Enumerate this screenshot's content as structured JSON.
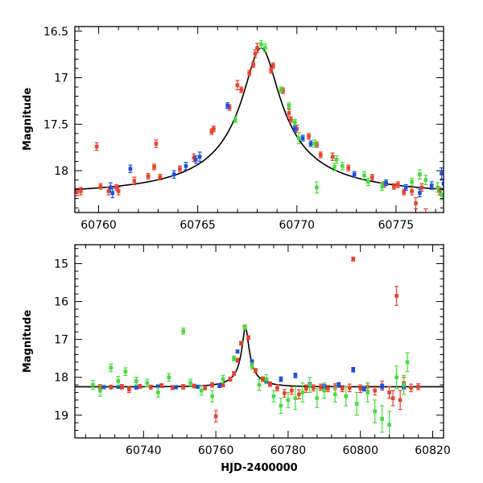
{
  "colors": {
    "red": "#e8412c",
    "blue": "#1b4fe0",
    "green": "#44dd3a",
    "model": "#000000"
  },
  "chart_data": [
    {
      "type": "scatter",
      "panel": "top",
      "xlabel": "",
      "ylabel": "Magnitude",
      "xlim": [
        60758.8,
        60777.4
      ],
      "ylim": [
        18.45,
        16.45
      ],
      "y_inverted": true,
      "x_ticks": [
        60760,
        60765,
        60770,
        60775
      ],
      "x_tick_labels": [
        "60760",
        "60765",
        "60770",
        "60775"
      ],
      "y_ticks": [
        16.5,
        17,
        17.5,
        18
      ],
      "y_tick_labels": [
        "16.5",
        "17",
        "17.5",
        "18"
      ],
      "model": {
        "name": "",
        "base": 18.25,
        "t0": 60768.2,
        "peak": 16.68,
        "u0": 0.115,
        "tE": 8.0
      },
      "series": [
        {
          "color_key": "red",
          "points": [
            [
              60758.9,
              18.23,
              0.04
            ],
            [
              60759.1,
              18.22,
              0.04
            ],
            [
              60759.9,
              17.74,
              0.04
            ],
            [
              60760.1,
              18.17,
              0.03
            ],
            [
              60760.5,
              18.22,
              0.04
            ],
            [
              60760.9,
              18.18,
              0.03
            ],
            [
              60761.0,
              18.22,
              0.04
            ],
            [
              60761.8,
              18.11,
              0.04
            ],
            [
              60762.5,
              18.06,
              0.03
            ],
            [
              60762.8,
              17.96,
              0.03
            ],
            [
              60762.9,
              17.71,
              0.04
            ],
            [
              60763.1,
              18.07,
              0.03
            ],
            [
              60764.1,
              17.98,
              0.03
            ],
            [
              60764.8,
              17.86,
              0.04
            ],
            [
              60765.7,
              17.58,
              0.03
            ],
            [
              60765.8,
              17.55,
              0.03
            ],
            [
              60766.6,
              17.32,
              0.03
            ],
            [
              60767.0,
              17.08,
              0.05
            ],
            [
              60767.2,
              17.13,
              0.03
            ],
            [
              60767.6,
              16.95,
              0.03
            ],
            [
              60767.8,
              16.86,
              0.03
            ],
            [
              60767.9,
              16.74,
              0.04
            ],
            [
              60768.0,
              16.68,
              0.05
            ],
            [
              60768.7,
              16.92,
              0.03
            ],
            [
              60768.8,
              16.87,
              0.03
            ],
            [
              60769.3,
              17.14,
              0.03
            ],
            [
              60769.6,
              17.38,
              0.04
            ],
            [
              60769.7,
              17.45,
              0.03
            ],
            [
              60770.0,
              17.55,
              0.04
            ],
            [
              60770.6,
              17.63,
              0.03
            ],
            [
              60771.0,
              17.72,
              0.03
            ],
            [
              60771.2,
              17.83,
              0.03
            ],
            [
              60771.8,
              17.85,
              0.04
            ],
            [
              60772.6,
              17.97,
              0.03
            ],
            [
              60773.8,
              18.07,
              0.03
            ],
            [
              60774.4,
              18.15,
              0.03
            ],
            [
              60774.9,
              18.17,
              0.03
            ],
            [
              60775.1,
              18.15,
              0.03
            ],
            [
              60775.4,
              18.23,
              0.03
            ],
            [
              60775.8,
              18.22,
              0.04
            ],
            [
              60776.0,
              18.35,
              0.06
            ],
            [
              60776.3,
              18.18,
              0.04
            ],
            [
              60776.5,
              18.47,
              0.06
            ],
            [
              60777.2,
              18.22,
              0.04
            ]
          ]
        },
        {
          "color_key": "blue",
          "points": [
            [
              60760.6,
              18.18,
              0.05
            ],
            [
              60760.7,
              18.24,
              0.05
            ],
            [
              60761.6,
              17.98,
              0.04
            ],
            [
              60763.8,
              18.04,
              0.04
            ],
            [
              60764.4,
              17.95,
              0.04
            ],
            [
              60764.9,
              17.88,
              0.04
            ],
            [
              60765.1,
              17.85,
              0.05
            ],
            [
              60766.5,
              17.3,
              0.03
            ],
            [
              60769.9,
              17.55,
              0.03
            ],
            [
              60770.3,
              17.65,
              0.03
            ],
            [
              60770.7,
              17.71,
              0.03
            ],
            [
              60772.9,
              18.04,
              0.03
            ],
            [
              60774.5,
              18.13,
              0.03
            ],
            [
              60775.5,
              18.18,
              0.03
            ],
            [
              60776.2,
              18.24,
              0.04
            ],
            [
              60776.8,
              18.16,
              0.04
            ],
            [
              60777.3,
              18.03,
              0.06
            ],
            [
              60777.4,
              18.14,
              0.05
            ]
          ]
        },
        {
          "color_key": "green",
          "points": [
            [
              60766.9,
              17.45,
              0.03
            ],
            [
              60768.2,
              16.64,
              0.04
            ],
            [
              60768.4,
              16.68,
              0.04
            ],
            [
              60769.2,
              17.13,
              0.03
            ],
            [
              60769.6,
              17.3,
              0.03
            ],
            [
              60769.9,
              17.48,
              0.03
            ],
            [
              60770.1,
              17.65,
              0.06
            ],
            [
              60770.9,
              17.71,
              0.04
            ],
            [
              60771.0,
              18.18,
              0.06
            ],
            [
              60771.9,
              17.96,
              0.04
            ],
            [
              60772.0,
              17.88,
              0.04
            ],
            [
              60772.3,
              17.95,
              0.04
            ],
            [
              60773.4,
              18.05,
              0.04
            ],
            [
              60773.6,
              18.12,
              0.04
            ],
            [
              60774.3,
              18.17,
              0.04
            ],
            [
              60775.8,
              18.12,
              0.04
            ],
            [
              60776.2,
              18.04,
              0.05
            ],
            [
              60776.5,
              18.1,
              0.05
            ],
            [
              60777.1,
              18.18,
              0.05
            ],
            [
              60777.3,
              18.26,
              0.05
            ]
          ]
        }
      ]
    },
    {
      "type": "scatter",
      "panel": "bottom",
      "xlabel": "HJD-2400000",
      "ylabel": "Magnitude",
      "xlim": [
        60721,
        60823
      ],
      "ylim": [
        19.6,
        14.5
      ],
      "y_inverted": true,
      "x_ticks": [
        60740,
        60760,
        60780,
        60800,
        60820
      ],
      "x_tick_labels": [
        "60740",
        "60760",
        "60780",
        "60800",
        "60820"
      ],
      "y_ticks": [
        15,
        16,
        17,
        18,
        19
      ],
      "y_tick_labels": [
        "15",
        "16",
        "17",
        "18",
        "19"
      ],
      "model": {
        "name": "",
        "base": 18.25,
        "t0": 60768.2,
        "peak": 16.68,
        "u0": 0.115,
        "tE": 8.0
      },
      "series": [
        {
          "color_key": "red",
          "points": [
            [
              60728,
              18.24,
              0.05
            ],
            [
              60731,
              18.26,
              0.05
            ],
            [
              60734,
              18.25,
              0.06
            ],
            [
              60736,
              18.32,
              0.08
            ],
            [
              60739,
              18.24,
              0.05
            ],
            [
              60742,
              18.26,
              0.05
            ],
            [
              60745,
              18.22,
              0.05
            ],
            [
              60748,
              18.27,
              0.05
            ],
            [
              60751,
              18.25,
              0.06
            ],
            [
              60754,
              18.23,
              0.05
            ],
            [
              60757,
              18.28,
              0.05
            ],
            [
              60759,
              18.2,
              0.06
            ],
            [
              60760,
              19.03,
              0.15
            ],
            [
              60762,
              18.2,
              0.05
            ],
            [
              60764,
              18.05,
              0.05
            ],
            [
              60765,
              17.9,
              0.05
            ],
            [
              60766,
              17.55,
              0.05
            ],
            [
              60767,
              17.1,
              0.05
            ],
            [
              60768,
              16.68,
              0.06
            ],
            [
              60769,
              16.95,
              0.05
            ],
            [
              60770,
              17.6,
              0.06
            ],
            [
              60771,
              17.82,
              0.05
            ],
            [
              60773,
              18.05,
              0.06
            ],
            [
              60775,
              18.18,
              0.06
            ],
            [
              60777,
              18.28,
              0.08
            ],
            [
              60779,
              18.42,
              0.1
            ],
            [
              60781,
              18.35,
              0.1
            ],
            [
              60783,
              18.45,
              0.12
            ],
            [
              60785,
              18.3,
              0.1
            ],
            [
              60787,
              18.28,
              0.08
            ],
            [
              60789,
              18.26,
              0.08
            ],
            [
              60791,
              18.3,
              0.08
            ],
            [
              60793,
              18.25,
              0.08
            ],
            [
              60795,
              18.3,
              0.08
            ],
            [
              60797,
              18.28,
              0.1
            ],
            [
              60798,
              14.88,
              0.05
            ],
            [
              60800,
              18.3,
              0.1
            ],
            [
              60802,
              18.25,
              0.1
            ],
            [
              60804,
              18.35,
              0.12
            ],
            [
              60806,
              18.22,
              0.12
            ],
            [
              60808,
              18.4,
              0.15
            ],
            [
              60809,
              18.55,
              0.2
            ],
            [
              60810,
              15.85,
              0.25
            ],
            [
              60811,
              18.6,
              0.25
            ],
            [
              60812,
              18.15,
              0.15
            ],
            [
              60814,
              18.28,
              0.1
            ],
            [
              60816,
              18.25,
              0.08
            ]
          ]
        },
        {
          "color_key": "blue",
          "points": [
            [
              60729,
              18.26,
              0.04
            ],
            [
              60733,
              18.25,
              0.04
            ],
            [
              60738,
              18.27,
              0.04
            ],
            [
              60744,
              18.24,
              0.04
            ],
            [
              60749,
              18.26,
              0.04
            ],
            [
              60755,
              18.25,
              0.04
            ],
            [
              60761,
              18.22,
              0.05
            ],
            [
              60766,
              17.32,
              0.04
            ],
            [
              60770,
              17.58,
              0.04
            ],
            [
              60774,
              18.1,
              0.05
            ],
            [
              60778,
              18.05,
              0.06
            ],
            [
              60782,
              17.95,
              0.06
            ],
            [
              60786,
              18.2,
              0.06
            ],
            [
              60790,
              18.25,
              0.06
            ],
            [
              60794,
              18.2,
              0.06
            ],
            [
              60798,
              17.8,
              0.06
            ],
            [
              60801,
              18.3,
              0.06
            ],
            [
              60806,
              18.24,
              0.06
            ],
            [
              60812,
              18.25,
              0.06
            ]
          ]
        },
        {
          "color_key": "green",
          "points": [
            [
              60726,
              18.2,
              0.12
            ],
            [
              60728,
              18.35,
              0.15
            ],
            [
              60731,
              17.75,
              0.1
            ],
            [
              60733,
              18.1,
              0.12
            ],
            [
              60735,
              17.85,
              0.1
            ],
            [
              60738,
              18.1,
              0.1
            ],
            [
              60741,
              18.15,
              0.1
            ],
            [
              60744,
              18.4,
              0.12
            ],
            [
              60747,
              18.0,
              0.1
            ],
            [
              60751,
              16.78,
              0.08
            ],
            [
              60753,
              18.15,
              0.1
            ],
            [
              60756,
              18.35,
              0.12
            ],
            [
              60759,
              18.5,
              0.15
            ],
            [
              60762,
              18.05,
              0.1
            ],
            [
              60765,
              17.5,
              0.06
            ],
            [
              60768,
              16.68,
              0.06
            ],
            [
              60770,
              17.7,
              0.08
            ],
            [
              60772,
              18.2,
              0.15
            ],
            [
              60774,
              18.05,
              0.12
            ],
            [
              60776,
              18.5,
              0.15
            ],
            [
              60778,
              18.75,
              0.2
            ],
            [
              60780,
              18.6,
              0.2
            ],
            [
              60782,
              18.55,
              0.3
            ],
            [
              60784,
              18.4,
              0.25
            ],
            [
              60786,
              18.2,
              0.2
            ],
            [
              60788,
              18.55,
              0.25
            ],
            [
              60790,
              18.35,
              0.2
            ],
            [
              60793,
              18.45,
              0.2
            ],
            [
              60796,
              18.5,
              0.25
            ],
            [
              60799,
              18.7,
              0.3
            ],
            [
              60802,
              18.4,
              0.25
            ],
            [
              60804,
              18.9,
              0.3
            ],
            [
              60806,
              19.1,
              0.35
            ],
            [
              60808,
              19.25,
              0.35
            ],
            [
              60810,
              18.0,
              0.3
            ],
            [
              60812,
              18.2,
              0.25
            ],
            [
              60813,
              17.6,
              0.25
            ]
          ]
        }
      ]
    }
  ]
}
